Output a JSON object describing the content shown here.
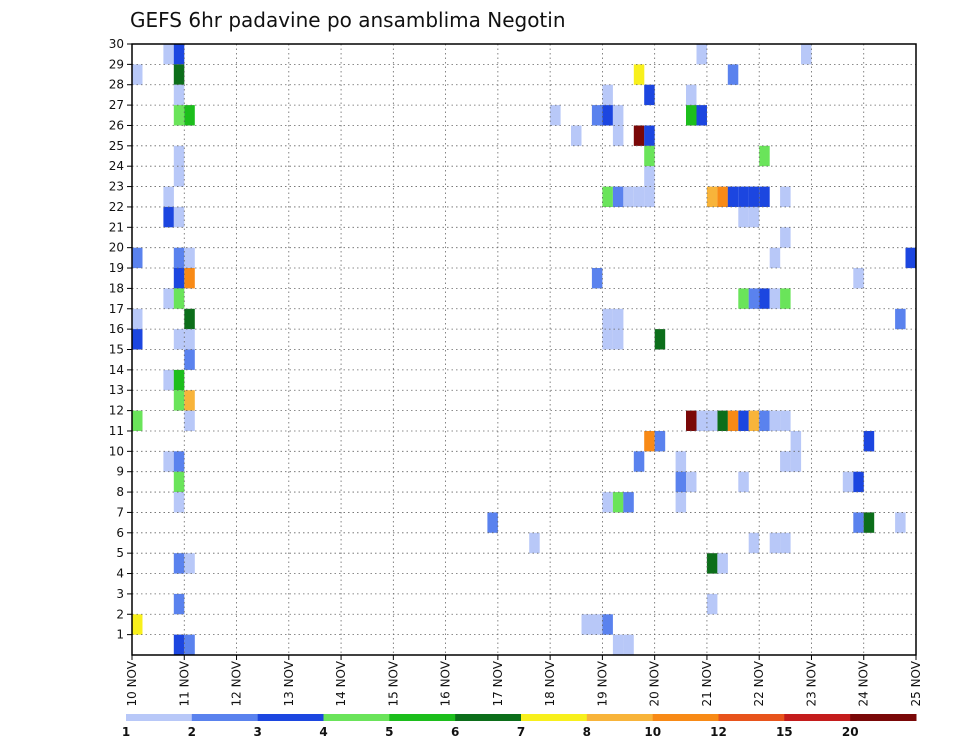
{
  "chart_data": {
    "type": "heatmap",
    "title": "GEFS 6hr padavine po ansamblima Negotin",
    "x_labels": [
      "10 NOV",
      "11 NOV",
      "12 NOV",
      "13 NOV",
      "14 NOV",
      "15 NOV",
      "16 NOV",
      "17 NOV",
      "18 NOV",
      "19 NOV",
      "20 NOV",
      "21 NOV",
      "22 NOV",
      "23 NOV",
      "24 NOV",
      "25 NOV"
    ],
    "y_labels": [
      "1",
      "2",
      "3",
      "4",
      "5",
      "6",
      "7",
      "8",
      "9",
      "10",
      "11",
      "12",
      "13",
      "14",
      "15",
      "16",
      "17",
      "18",
      "19",
      "20",
      "21",
      "22",
      "23",
      "24",
      "25",
      "26",
      "27",
      "28",
      "29",
      "30"
    ],
    "x_range_days": [
      10,
      25
    ],
    "y_range_members": [
      0,
      30
    ],
    "grid": true,
    "legend_position": "bottom",
    "legend_levels": [
      "1",
      "2",
      "3",
      "4",
      "5",
      "6",
      "7",
      "8",
      "10",
      "12",
      "15",
      "20"
    ],
    "legend_colors": [
      "#b8c8f8",
      "#5a82ee",
      "#1c46e0",
      "#6ae45a",
      "#1cbe1c",
      "#0c6e1a",
      "#f8f01c",
      "#f8b43a",
      "#f88a16",
      "#e8541c",
      "#c41c1c",
      "#7a0808"
    ],
    "cells": [
      {
        "m": 30,
        "d": 10.6,
        "c": 0
      },
      {
        "m": 30,
        "d": 10.8,
        "c": 2
      },
      {
        "m": 30,
        "d": 20.8,
        "c": 0
      },
      {
        "m": 30,
        "d": 22.8,
        "c": 0
      },
      {
        "m": 29,
        "d": 10.0,
        "c": 0
      },
      {
        "m": 29,
        "d": 10.8,
        "c": 5
      },
      {
        "m": 29,
        "d": 19.6,
        "c": 6
      },
      {
        "m": 29,
        "d": 21.4,
        "c": 1
      },
      {
        "m": 28,
        "d": 10.8,
        "c": 0
      },
      {
        "m": 28,
        "d": 19.0,
        "c": 0
      },
      {
        "m": 28,
        "d": 19.8,
        "c": 2
      },
      {
        "m": 28,
        "d": 20.6,
        "c": 0
      },
      {
        "m": 27,
        "d": 10.8,
        "c": 3
      },
      {
        "m": 27,
        "d": 11.0,
        "c": 4
      },
      {
        "m": 27,
        "d": 18.0,
        "c": 0
      },
      {
        "m": 27,
        "d": 18.8,
        "c": 1
      },
      {
        "m": 27,
        "d": 19.0,
        "c": 2
      },
      {
        "m": 27,
        "d": 19.2,
        "c": 0
      },
      {
        "m": 27,
        "d": 20.6,
        "c": 4
      },
      {
        "m": 27,
        "d": 20.8,
        "c": 2
      },
      {
        "m": 26,
        "d": 18.4,
        "c": 0
      },
      {
        "m": 26,
        "d": 19.2,
        "c": 0
      },
      {
        "m": 26,
        "d": 19.6,
        "c": 11
      },
      {
        "m": 26,
        "d": 19.8,
        "c": 2
      },
      {
        "m": 25,
        "d": 10.8,
        "c": 0
      },
      {
        "m": 25,
        "d": 19.8,
        "c": 3
      },
      {
        "m": 25,
        "d": 22.0,
        "c": 3
      },
      {
        "m": 24,
        "d": 10.8,
        "c": 0
      },
      {
        "m": 24,
        "d": 19.8,
        "c": 0
      },
      {
        "m": 23,
        "d": 10.6,
        "c": 0
      },
      {
        "m": 23,
        "d": 19.0,
        "c": 3
      },
      {
        "m": 23,
        "d": 19.2,
        "c": 1
      },
      {
        "m": 23,
        "d": 19.4,
        "c": 0
      },
      {
        "m": 23,
        "d": 19.6,
        "c": 0
      },
      {
        "m": 23,
        "d": 19.8,
        "c": 0
      },
      {
        "m": 23,
        "d": 21.0,
        "c": 7
      },
      {
        "m": 23,
        "d": 21.2,
        "c": 8
      },
      {
        "m": 23,
        "d": 21.4,
        "c": 2
      },
      {
        "m": 23,
        "d": 21.6,
        "c": 2
      },
      {
        "m": 23,
        "d": 21.8,
        "c": 2
      },
      {
        "m": 23,
        "d": 22.0,
        "c": 2
      },
      {
        "m": 23,
        "d": 22.4,
        "c": 0
      },
      {
        "m": 22,
        "d": 10.6,
        "c": 2
      },
      {
        "m": 22,
        "d": 10.8,
        "c": 0
      },
      {
        "m": 22,
        "d": 21.6,
        "c": 0
      },
      {
        "m": 22,
        "d": 21.8,
        "c": 0
      },
      {
        "m": 21,
        "d": 22.4,
        "c": 0
      },
      {
        "m": 20,
        "d": 10.0,
        "c": 1
      },
      {
        "m": 20,
        "d": 10.8,
        "c": 1
      },
      {
        "m": 20,
        "d": 11.0,
        "c": 0
      },
      {
        "m": 20,
        "d": 22.2,
        "c": 0
      },
      {
        "m": 20,
        "d": 24.8,
        "c": 2
      },
      {
        "m": 19,
        "d": 10.8,
        "c": 2
      },
      {
        "m": 19,
        "d": 11.0,
        "c": 8
      },
      {
        "m": 19,
        "d": 18.8,
        "c": 1
      },
      {
        "m": 19,
        "d": 23.8,
        "c": 0
      },
      {
        "m": 18,
        "d": 10.6,
        "c": 0
      },
      {
        "m": 18,
        "d": 10.8,
        "c": 3
      },
      {
        "m": 18,
        "d": 21.6,
        "c": 3
      },
      {
        "m": 18,
        "d": 21.8,
        "c": 1
      },
      {
        "m": 18,
        "d": 22.0,
        "c": 2
      },
      {
        "m": 18,
        "d": 22.2,
        "c": 0
      },
      {
        "m": 18,
        "d": 22.4,
        "c": 3
      },
      {
        "m": 17,
        "d": 10.0,
        "c": 0
      },
      {
        "m": 17,
        "d": 11.0,
        "c": 5
      },
      {
        "m": 17,
        "d": 19.0,
        "c": 0
      },
      {
        "m": 17,
        "d": 19.2,
        "c": 0
      },
      {
        "m": 17,
        "d": 24.6,
        "c": 1
      },
      {
        "m": 16,
        "d": 10.0,
        "c": 2
      },
      {
        "m": 16,
        "d": 10.8,
        "c": 0
      },
      {
        "m": 16,
        "d": 11.0,
        "c": 0
      },
      {
        "m": 16,
        "d": 19.0,
        "c": 0
      },
      {
        "m": 16,
        "d": 19.2,
        "c": 0
      },
      {
        "m": 16,
        "d": 20.0,
        "c": 5
      },
      {
        "m": 15,
        "d": 11.0,
        "c": 1
      },
      {
        "m": 14,
        "d": 10.6,
        "c": 0
      },
      {
        "m": 14,
        "d": 10.8,
        "c": 4
      },
      {
        "m": 13,
        "d": 10.8,
        "c": 3
      },
      {
        "m": 13,
        "d": 11.0,
        "c": 7
      },
      {
        "m": 12,
        "d": 10.0,
        "c": 3
      },
      {
        "m": 12,
        "d": 11.0,
        "c": 0
      },
      {
        "m": 12,
        "d": 20.6,
        "c": 11
      },
      {
        "m": 12,
        "d": 20.8,
        "c": 0
      },
      {
        "m": 12,
        "d": 21.2,
        "c": 5
      },
      {
        "m": 12,
        "d": 21.4,
        "c": 8
      },
      {
        "m": 12,
        "d": 21.6,
        "c": 2
      },
      {
        "m": 12,
        "d": 21.8,
        "c": 7
      },
      {
        "m": 12,
        "d": 22.0,
        "c": 1
      },
      {
        "m": 12,
        "d": 22.2,
        "c": 0
      },
      {
        "m": 12,
        "d": 22.4,
        "c": 0
      },
      {
        "m": 12,
        "d": 21.0,
        "c": 0
      },
      {
        "m": 11,
        "d": 19.8,
        "c": 8
      },
      {
        "m": 11,
        "d": 20.0,
        "c": 1
      },
      {
        "m": 11,
        "d": 22.6,
        "c": 0
      },
      {
        "m": 11,
        "d": 24.0,
        "c": 2
      },
      {
        "m": 10,
        "d": 10.6,
        "c": 0
      },
      {
        "m": 10,
        "d": 10.8,
        "c": 1
      },
      {
        "m": 10,
        "d": 19.6,
        "c": 1
      },
      {
        "m": 10,
        "d": 20.4,
        "c": 0
      },
      {
        "m": 10,
        "d": 22.4,
        "c": 0
      },
      {
        "m": 10,
        "d": 22.6,
        "c": 0
      },
      {
        "m": 9,
        "d": 10.8,
        "c": 3
      },
      {
        "m": 9,
        "d": 20.4,
        "c": 1
      },
      {
        "m": 9,
        "d": 20.6,
        "c": 0
      },
      {
        "m": 9,
        "d": 21.6,
        "c": 0
      },
      {
        "m": 9,
        "d": 23.6,
        "c": 0
      },
      {
        "m": 9,
        "d": 23.8,
        "c": 2
      },
      {
        "m": 8,
        "d": 10.8,
        "c": 0
      },
      {
        "m": 8,
        "d": 19.0,
        "c": 0
      },
      {
        "m": 8,
        "d": 19.2,
        "c": 3
      },
      {
        "m": 8,
        "d": 19.4,
        "c": 1
      },
      {
        "m": 8,
        "d": 20.4,
        "c": 0
      },
      {
        "m": 7,
        "d": 16.8,
        "c": 1
      },
      {
        "m": 7,
        "d": 23.8,
        "c": 1
      },
      {
        "m": 7,
        "d": 24.0,
        "c": 5
      },
      {
        "m": 7,
        "d": 24.6,
        "c": 0
      },
      {
        "m": 6,
        "d": 17.6,
        "c": 0
      },
      {
        "m": 6,
        "d": 21.8,
        "c": 0
      },
      {
        "m": 6,
        "d": 22.2,
        "c": 0
      },
      {
        "m": 6,
        "d": 22.4,
        "c": 0
      },
      {
        "m": 5,
        "d": 10.8,
        "c": 1
      },
      {
        "m": 5,
        "d": 11.0,
        "c": 0
      },
      {
        "m": 5,
        "d": 21.0,
        "c": 5
      },
      {
        "m": 5,
        "d": 21.2,
        "c": 0
      },
      {
        "m": 3,
        "d": 10.8,
        "c": 1
      },
      {
        "m": 3,
        "d": 21.0,
        "c": 0
      },
      {
        "m": 2,
        "d": 10.0,
        "c": 6
      },
      {
        "m": 2,
        "d": 18.6,
        "c": 0
      },
      {
        "m": 2,
        "d": 18.8,
        "c": 0
      },
      {
        "m": 2,
        "d": 19.0,
        "c": 1
      },
      {
        "m": 1,
        "d": 10.8,
        "c": 2
      },
      {
        "m": 1,
        "d": 11.0,
        "c": 1
      },
      {
        "m": 1,
        "d": 19.2,
        "c": 0
      },
      {
        "m": 1,
        "d": 19.4,
        "c": 0
      }
    ]
  }
}
